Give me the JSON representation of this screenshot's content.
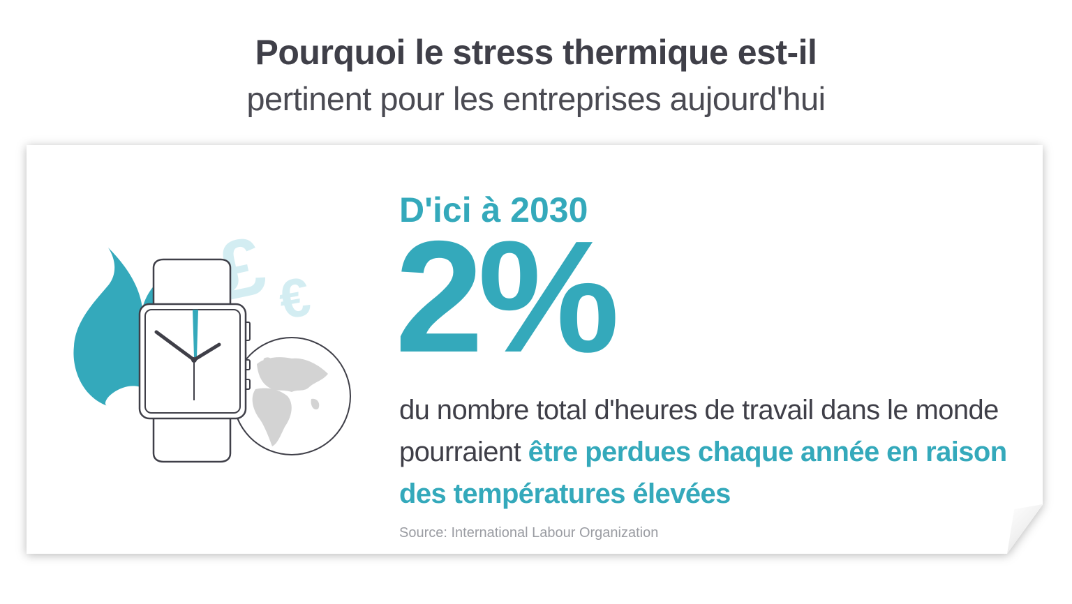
{
  "header": {
    "title_bold": "Pourquoi le stress thermique est-il",
    "title_light": "pertinent pour les entreprises aujourd'hui"
  },
  "card": {
    "headline": "D'ici à 2030",
    "statistic": "2%",
    "description_plain": "du nombre total d'heures de travail dans le monde pourraient ",
    "description_highlight": "être perdues chaque année en raison des températures élevées",
    "source": "Source: International Labour Organization"
  },
  "illustration": {
    "icons": [
      "flame-icon",
      "smartwatch-icon",
      "globe-icon",
      "pound-icon",
      "euro-icon"
    ],
    "pound_symbol": "£",
    "euro_symbol": "€"
  },
  "colors": {
    "accent": "#34a9bb",
    "accent_light": "#d3edf2",
    "text_dark": "#3f3f48",
    "globe_land": "#d3d3d3",
    "outline": "#3f3f48",
    "source_text": "#9a9ca2"
  }
}
